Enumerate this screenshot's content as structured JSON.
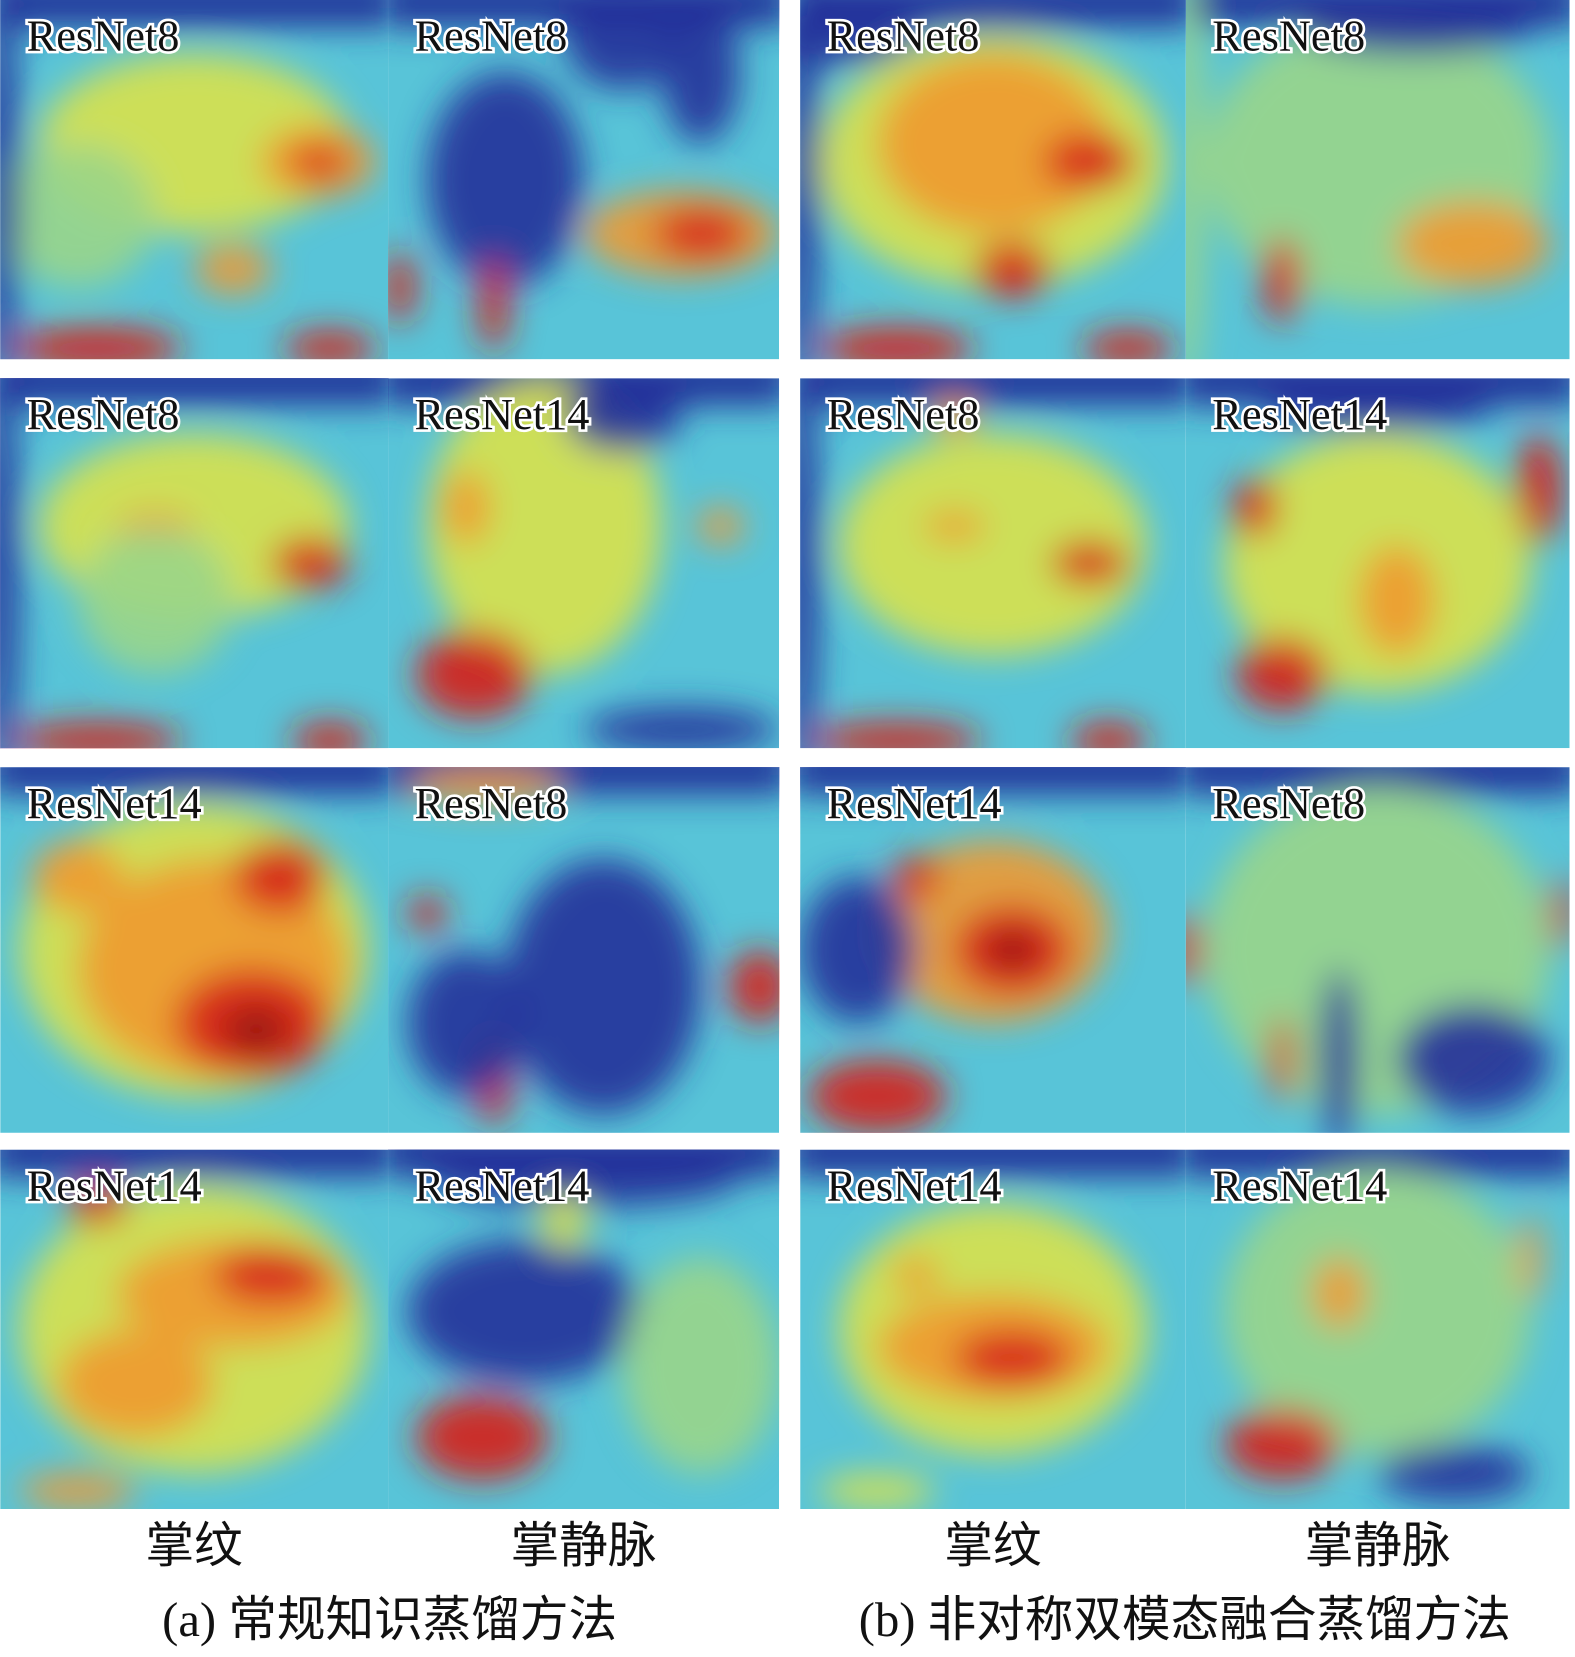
{
  "panels": [
    {
      "tiles": [
        [
          "ResNet8",
          "ResNet8"
        ],
        [
          "ResNet8",
          "ResNet14"
        ],
        [
          "ResNet14",
          "ResNet8"
        ],
        [
          "ResNet14",
          "ResNet14"
        ]
      ],
      "column_labels": [
        "掌纹",
        "掌静脉"
      ],
      "caption": "(a) 常规知识蒸馏方法"
    },
    {
      "tiles": [
        [
          "ResNet8",
          "ResNet8"
        ],
        [
          "ResNet8",
          "ResNet14"
        ],
        [
          "ResNet14",
          "ResNet8"
        ],
        [
          "ResNet14",
          "ResNet14"
        ]
      ],
      "column_labels": [
        "掌纹",
        "掌静脉"
      ],
      "caption": "(b) 非对称双模态融合蒸馏方法"
    }
  ]
}
